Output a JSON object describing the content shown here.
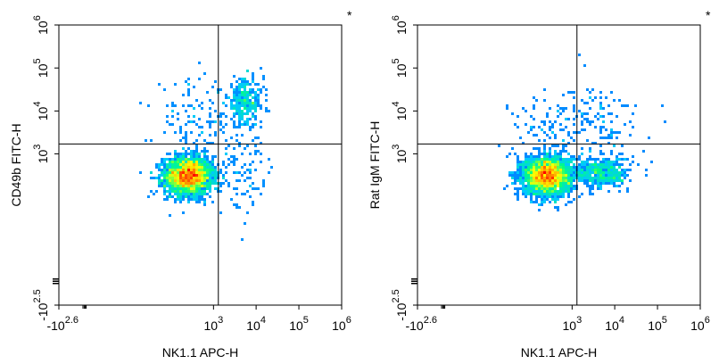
{
  "chart_data": [
    {
      "type": "scatter",
      "title": "",
      "corner_mark": "*",
      "xlabel": "NK1.1 APC-H",
      "ylabel": "CD49b FITC-H",
      "x_scale": "biexponential",
      "y_scale": "biexponential",
      "xlim": [
        -398,
        1000000
      ],
      "ylim": [
        -316,
        1000000
      ],
      "x_ticks": [
        {
          "base": "-10",
          "exp": "2.6",
          "value": -398
        },
        {
          "base": "10",
          "exp": "3",
          "value": 1000
        },
        {
          "base": "10",
          "exp": "4",
          "value": 10000
        },
        {
          "base": "10",
          "exp": "5",
          "value": 100000
        },
        {
          "base": "10",
          "exp": "6",
          "value": 1000000
        }
      ],
      "y_ticks": [
        {
          "base": "-10",
          "exp": "2.5",
          "value": -316
        },
        {
          "base": "10",
          "exp": "3",
          "value": 1000
        },
        {
          "base": "10",
          "exp": "4",
          "value": 10000
        },
        {
          "base": "10",
          "exp": "5",
          "value": 100000
        },
        {
          "base": "10",
          "exp": "6",
          "value": 1000000
        }
      ],
      "gate": {
        "x": 1300,
        "y": 1700
      },
      "populations": [
        {
          "center": [
            250,
            300
          ],
          "density": "high",
          "share": 0.88
        },
        {
          "center": [
            5500,
            16000
          ],
          "density": "low",
          "share": 0.06
        },
        {
          "center": [
            300,
            6000
          ],
          "density": "sparse",
          "share": 0.03
        },
        {
          "center": [
            4000,
            350
          ],
          "density": "sparse",
          "share": 0.03
        }
      ],
      "colorscale": [
        "#0000ff",
        "#00c8ff",
        "#00ff80",
        "#ffff00",
        "#ff8000",
        "#ff0000"
      ],
      "grid": false,
      "legend": "none"
    },
    {
      "type": "scatter",
      "title": "",
      "corner_mark": "*",
      "xlabel": "NK1.1 APC-H",
      "ylabel": "Rat IgM FITC-H",
      "x_scale": "biexponential",
      "y_scale": "biexponential",
      "xlim": [
        -398,
        1000000
      ],
      "ylim": [
        -316,
        1000000
      ],
      "x_ticks": [
        {
          "base": "-10",
          "exp": "2.6",
          "value": -398
        },
        {
          "base": "10",
          "exp": "3",
          "value": 1000
        },
        {
          "base": "10",
          "exp": "4",
          "value": 10000
        },
        {
          "base": "10",
          "exp": "5",
          "value": 100000
        },
        {
          "base": "10",
          "exp": "6",
          "value": 1000000
        }
      ],
      "y_ticks": [
        {
          "base": "-10",
          "exp": "2.5",
          "value": -316
        },
        {
          "base": "10",
          "exp": "3",
          "value": 1000
        },
        {
          "base": "10",
          "exp": "4",
          "value": 10000
        },
        {
          "base": "10",
          "exp": "5",
          "value": 100000
        },
        {
          "base": "10",
          "exp": "6",
          "value": 1000000
        }
      ],
      "gate": {
        "x": 1300,
        "y": 1700
      },
      "populations": [
        {
          "center": [
            250,
            300
          ],
          "density": "high",
          "share": 0.88
        },
        {
          "center": [
            5000,
            350
          ],
          "density": "medium",
          "share": 0.08
        },
        {
          "center": [
            5000,
            6000
          ],
          "density": "sparse",
          "share": 0.02
        },
        {
          "center": [
            300,
            4000
          ],
          "density": "sparse",
          "share": 0.02
        }
      ],
      "colorscale": [
        "#0000ff",
        "#00c8ff",
        "#00ff80",
        "#ffff00",
        "#ff8000",
        "#ff0000"
      ],
      "grid": false,
      "legend": "none"
    }
  ]
}
